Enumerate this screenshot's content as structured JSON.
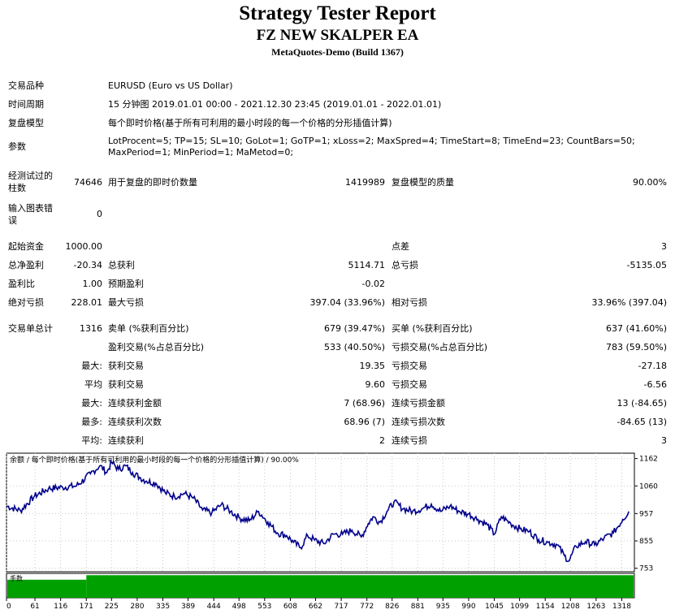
{
  "header": {
    "title": "Strategy Tester Report",
    "ea_name": "FZ NEW SKALPER EA",
    "server": "MetaQuotes-Demo (Build 1367)"
  },
  "info": {
    "symbol_label": "交易品种",
    "symbol_value": "EURUSD (Euro vs US Dollar)",
    "period_label": "时间周期",
    "period_value": "15 分钟图 2019.01.01 00:00 - 2021.12.30 23:45 (2019.01.01 - 2022.01.01)",
    "model_label": "复盘模型",
    "model_value": "每个即时价格(基于所有可利用的最小时段的每一个价格的分形插值计算)",
    "params_label": "参数",
    "params_line1": "LotProcent=5; TP=15; SL=10; GoLot=1; GoTP=1; xLoss=2; MaxSpred=4; TimeStart=8; TimeEnd=23; CountBars=50;",
    "params_line2": "MaxPeriod=1; MinPeriod=1; MaMetod=0;"
  },
  "bars_block": {
    "bars_label_1": "经测试过的",
    "bars_label_2": "柱数",
    "bars_value": "74646",
    "ticks_label": "用于复盘的即时价数量",
    "ticks_value": "1419989",
    "quality_label": "复盘模型的质量",
    "quality_value": "90.00%",
    "errors_label_1": "输入图表错",
    "errors_label_2": "误",
    "errors_value": "0"
  },
  "stats": {
    "deposit_label": "起始资金",
    "deposit_value": "1000.00",
    "spread_label": "点差",
    "spread_value": "3",
    "net_label": "总净盈利",
    "net_value": "-20.34",
    "gross_profit_label": "总获利",
    "gross_profit_value": "5114.71",
    "gross_loss_label": "总亏损",
    "gross_loss_value": "-5135.05",
    "pf_label": "盈利比",
    "pf_value": "1.00",
    "expected_label": "预期盈利",
    "expected_value": "-0.02",
    "abs_dd_label": "绝对亏损",
    "abs_dd_value": "228.01",
    "max_dd_label": "最大亏损",
    "max_dd_value": "397.04 (33.96%)",
    "rel_dd_label": "相对亏损",
    "rel_dd_value": "33.96% (397.04)",
    "total_label": "交易单总计",
    "total_value": "1316",
    "short_label": "卖单 (%获利百分比)",
    "short_value": "679 (39.47%)",
    "long_label": "买单 (%获利百分比)",
    "long_value": "637 (41.60%)",
    "win_label": "盈利交易(%占总百分比)",
    "win_value": "533 (40.50%)",
    "loss_label": "亏损交易(%占总百分比)",
    "loss_value": "783 (59.50%)",
    "max1_label": "最大:",
    "lg_win_label": "获利交易",
    "lg_win_value": "19.35",
    "lg_loss_label": "亏损交易",
    "lg_loss_value": "-27.18",
    "avg1_label": "平均",
    "avg_win_label": "获利交易",
    "avg_win_value": "9.60",
    "avg_loss_label": "亏损交易",
    "avg_loss_value": "-6.56",
    "max2_label": "最大:",
    "cons_win_label": "连续获利金额",
    "cons_win_value": "7 (68.96)",
    "cons_loss_label": "连续亏损金额",
    "cons_loss_value": "13 (-84.65)",
    "max3_label": "最多:",
    "cons_profit_label": "连续获利次数",
    "cons_profit_value": "68.96 (7)",
    "cons_lossamt_label": "连续亏损次数",
    "cons_lossamt_value": "-84.65 (13)",
    "avg2_label": "平均:",
    "avg_cons_win_label": "连续获利",
    "avg_cons_win_value": "2",
    "avg_cons_loss_label": "连续亏损",
    "avg_cons_loss_value": "3"
  },
  "chart_data": {
    "type": "line",
    "title": "余额 / 每个即时价格(基于所有可利用的最小时段的每一个价格的分形插值计算) / 90.00%",
    "volume_label": "手数",
    "x_ticks": [
      0,
      61,
      116,
      171,
      225,
      280,
      335,
      389,
      444,
      498,
      553,
      608,
      662,
      717,
      772,
      826,
      881,
      935,
      990,
      1045,
      1099,
      1154,
      1208,
      1263,
      1318
    ],
    "x_range": [
      0,
      1345
    ],
    "y_ticks": [
      753,
      855,
      957,
      1060,
      1162
    ],
    "y_range": [
      740,
      1182
    ],
    "series": [
      {
        "color": "#00008b",
        "x": [
          0,
          30,
          60,
          90,
          120,
          150,
          180,
          200,
          215,
          225,
          240,
          255,
          270,
          285,
          300,
          320,
          340,
          360,
          380,
          400,
          420,
          440,
          460,
          480,
          500,
          520,
          540,
          560,
          580,
          600,
          615,
          630,
          645,
          660,
          680,
          700,
          720,
          740,
          760,
          775,
          785,
          800,
          815,
          830,
          850,
          870,
          890,
          910,
          930,
          950,
          970,
          990,
          1010,
          1030,
          1045,
          1060,
          1080,
          1100,
          1120,
          1140,
          1160,
          1180,
          1195,
          1205,
          1220,
          1240,
          1260,
          1280,
          1300,
          1320,
          1333
        ],
        "y": [
          985,
          968,
          1022,
          1050,
          1055,
          1060,
          1105,
          1135,
          1110,
          1148,
          1122,
          1135,
          1110,
          1092,
          1078,
          1070,
          1035,
          1020,
          1032,
          1015,
          970,
          960,
          990,
          965,
          940,
          930,
          965,
          925,
          885,
          875,
          850,
          830,
          875,
          858,
          845,
          880,
          880,
          895,
          870,
          920,
          945,
          925,
          965,
          1000,
          975,
          965,
          975,
          992,
          965,
          985,
          965,
          955,
          935,
          915,
          880,
          945,
          920,
          900,
          890,
          860,
          850,
          840,
          800,
          780,
          835,
          852,
          840,
          865,
          885,
          935,
          965
        ]
      }
    ],
    "volume_values": [
      1,
      1.25
    ]
  }
}
